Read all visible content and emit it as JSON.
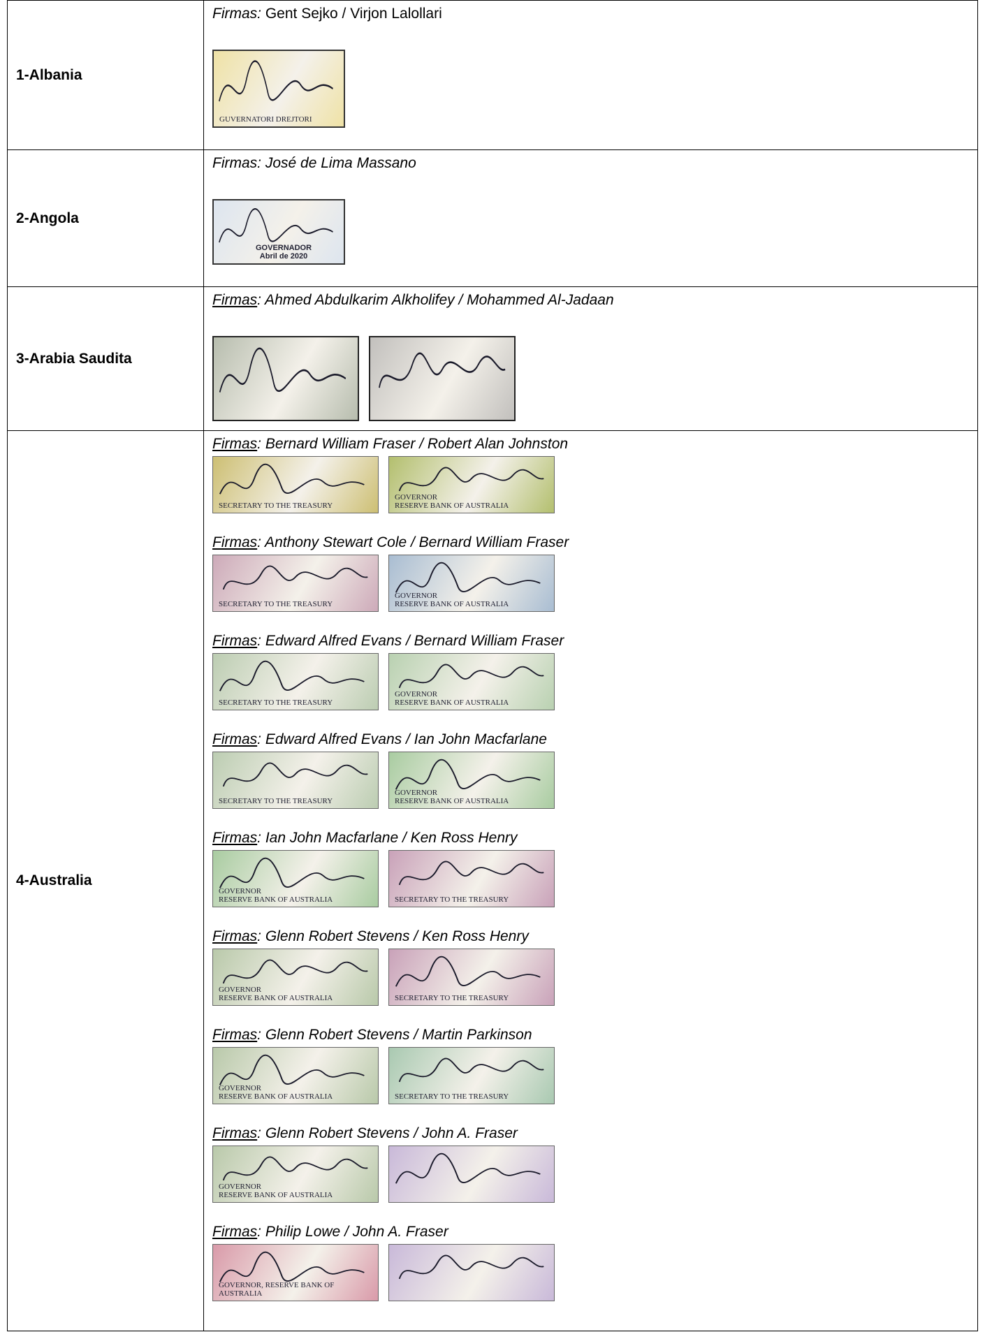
{
  "table": {
    "rows": [
      {
        "country": "1-Albania",
        "entries": [
          {
            "label": "Firmas:",
            "names": " Gent Sejko / Virjon Lalollari",
            "images": [
              {
                "color": "#efe2a6",
                "labels": [
                  "GUVERNATORI     DREJTORI"
                ]
              }
            ]
          }
        ]
      },
      {
        "country": "2-Angola",
        "entries": [
          {
            "label": "Firmas:",
            "names": " José de Lima Massano",
            "images": [
              {
                "color": "#dde5ef",
                "labels": [
                  "GOVERNADOR",
                  "Abril de 2020"
                ]
              }
            ]
          }
        ]
      },
      {
        "country": "3-Arabia Saudita",
        "entries": [
          {
            "label": "Firmas",
            "names": ": Ahmed Abdulkarim Alkholifey / Mohammed Al-Jadaan",
            "images": [
              {
                "color": "#b7bdae",
                "labels": []
              },
              {
                "color": "#c2c0bd",
                "labels": []
              }
            ]
          }
        ]
      },
      {
        "country": "4-Australia",
        "entries": [
          {
            "label": "Firmas",
            "names": ": Bernard William Fraser / Robert Alan Johnston",
            "images": [
              {
                "color": "#cdbf73",
                "labels": [
                  "SECRETARY TO THE TREASURY"
                ]
              },
              {
                "color": "#b3bf6e",
                "labels": [
                  "GOVERNOR",
                  "RESERVE BANK OF AUSTRALIA"
                ]
              }
            ]
          },
          {
            "label": "Firmas",
            "names": ": Anthony Stewart Cole / Bernard William Fraser",
            "images": [
              {
                "color": "#cdaab9",
                "labels": [
                  "SECRETARY TO THE TREASURY"
                ]
              },
              {
                "color": "#a9bdd2",
                "labels": [
                  "GOVERNOR",
                  "RESERVE BANK OF AUSTRALIA"
                ]
              }
            ]
          },
          {
            "label": "Firmas",
            "names": ": Edward Alfred Evans / Bernard William Fraser",
            "images": [
              {
                "color": "#bccdb2",
                "labels": [
                  "SECRETARY TO THE TREASURY"
                ]
              },
              {
                "color": "#b9d1b1",
                "labels": [
                  "GOVERNOR",
                  "RESERVE BANK OF AUSTRALIA"
                ]
              }
            ]
          },
          {
            "label": "Firmas",
            "names": ": Edward Alfred Evans / Ian John Macfarlane",
            "images": [
              {
                "color": "#bccdb2",
                "labels": [
                  "SECRETARY TO THE TREASURY"
                ]
              },
              {
                "color": "#a9cca1",
                "labels": [
                  "GOVERNOR",
                  "RESERVE BANK OF AUSTRALIA"
                ]
              }
            ]
          },
          {
            "label": "Firmas",
            "names": ": Ian John Macfarlane / Ken Ross Henry",
            "images": [
              {
                "color": "#a9cca1",
                "labels": [
                  "GOVERNOR",
                  "RESERVE BANK OF AUSTRALIA"
                ]
              },
              {
                "color": "#c9a2b9",
                "labels": [
                  "SECRETARY TO THE TREASURY"
                ]
              }
            ]
          },
          {
            "label": "Firmas",
            "names": ": Glenn Robert Stevens / Ken Ross Henry",
            "images": [
              {
                "color": "#b9c9aa",
                "labels": [
                  "GOVERNOR",
                  "RESERVE BANK OF AUSTRALIA"
                ]
              },
              {
                "color": "#c9a2b9",
                "labels": [
                  "SECRETARY TO THE TREASURY"
                ]
              }
            ]
          },
          {
            "label": "Firmas",
            "names": ": Glenn Robert Stevens / Martin Parkinson",
            "images": [
              {
                "color": "#b9c9aa",
                "labels": [
                  "GOVERNOR",
                  "RESERVE BANK OF AUSTRALIA"
                ]
              },
              {
                "color": "#a9c9b1",
                "labels": [
                  "SECRETARY TO THE TREASURY"
                ]
              }
            ]
          },
          {
            "label": "Firmas",
            "names": ": Glenn Robert Stevens / John A. Fraser",
            "images": [
              {
                "color": "#b9c9aa",
                "labels": [
                  "GOVERNOR",
                  "RESERVE BANK OF AUSTRALIA"
                ]
              },
              {
                "color": "#c9b9d9",
                "labels": []
              }
            ]
          },
          {
            "label": "Firmas",
            "names": ": Philip Lowe / John A. Fraser",
            "images": [
              {
                "color": "#d99aa9",
                "labels": [
                  "GOVERNOR, RESERVE BANK OF AUSTRALIA"
                ]
              },
              {
                "color": "#c9b9d9",
                "labels": []
              }
            ]
          }
        ]
      }
    ]
  }
}
